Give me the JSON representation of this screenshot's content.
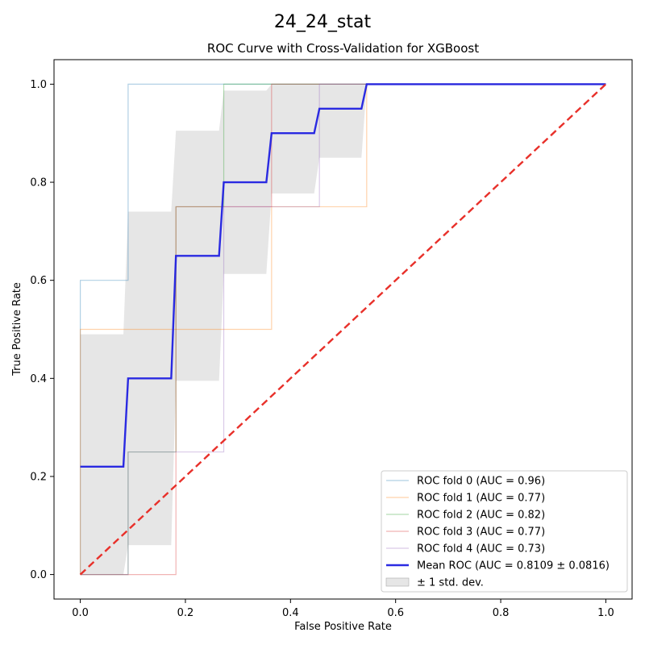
{
  "figure": {
    "suptitle": "24_24_stat"
  },
  "chart_data": {
    "type": "line",
    "title": "ROC Curve with Cross-Validation for XGBoost",
    "xlabel": "False Positive Rate",
    "ylabel": "True Positive Rate",
    "xlim": [
      -0.05,
      1.05
    ],
    "ylim": [
      -0.05,
      1.05
    ],
    "xticks": [
      "0.0",
      "0.2",
      "0.4",
      "0.6",
      "0.8",
      "1.0"
    ],
    "yticks": [
      "0.0",
      "0.2",
      "0.4",
      "0.6",
      "0.8",
      "1.0"
    ],
    "grid": false,
    "legend_position": "lower-right",
    "series": [
      {
        "name": "ROC fold 0 (AUC = 0.96)",
        "color": "#1f77b4",
        "x": [
          0.0,
          0.0,
          0.0,
          0.091,
          0.091,
          1.0
        ],
        "y": [
          0.0,
          0.4,
          0.6,
          0.6,
          1.0,
          1.0
        ]
      },
      {
        "name": "ROC fold 1 (AUC = 0.77)",
        "color": "#ff7f0e",
        "x": [
          0.0,
          0.0,
          0.364,
          0.364,
          0.545,
          0.545,
          1.0
        ],
        "y": [
          0.0,
          0.5,
          0.5,
          0.75,
          0.75,
          1.0,
          1.0
        ]
      },
      {
        "name": "ROC fold 2 (AUC = 0.82)",
        "color": "#2ca02c",
        "x": [
          0.0,
          0.091,
          0.091,
          0.182,
          0.182,
          0.273,
          0.273,
          1.0
        ],
        "y": [
          0.0,
          0.0,
          0.25,
          0.25,
          0.75,
          0.75,
          1.0,
          1.0
        ]
      },
      {
        "name": "ROC fold 3 (AUC = 0.77)",
        "color": "#d62728",
        "x": [
          0.0,
          0.182,
          0.182,
          0.364,
          0.364,
          1.0
        ],
        "y": [
          0.0,
          0.0,
          0.75,
          0.75,
          1.0,
          1.0
        ]
      },
      {
        "name": "ROC fold 4 (AUC = 0.73)",
        "color": "#9467bd",
        "x": [
          0.0,
          0.091,
          0.091,
          0.273,
          0.273,
          0.455,
          0.455,
          1.0
        ],
        "y": [
          0.0,
          0.0,
          0.25,
          0.25,
          0.75,
          0.75,
          1.0,
          1.0
        ]
      },
      {
        "name": "Mean ROC (AUC = 0.8109 ± 0.0816)",
        "color": "#2020e0",
        "x": [
          0.0,
          0.082,
          0.091,
          0.173,
          0.182,
          0.264,
          0.273,
          0.354,
          0.364,
          0.445,
          0.455,
          0.535,
          0.545,
          1.0
        ],
        "y": [
          0.22,
          0.22,
          0.4,
          0.4,
          0.65,
          0.65,
          0.8,
          0.8,
          0.9,
          0.9,
          0.95,
          0.95,
          1.0,
          1.0
        ]
      }
    ],
    "chance_line": {
      "color": "#e8302a",
      "x": [
        0.0,
        1.0
      ],
      "y": [
        0.0,
        1.0
      ]
    },
    "std_band": {
      "name": "± 1 std. dev.",
      "color": "#c8c8c8",
      "x": [
        0.0,
        0.082,
        0.091,
        0.173,
        0.182,
        0.264,
        0.273,
        0.354,
        0.364,
        0.445,
        0.455,
        0.535,
        0.545,
        1.0
      ],
      "upper": [
        0.49,
        0.49,
        0.74,
        0.74,
        0.905,
        0.905,
        0.987,
        0.987,
        1.0,
        1.0,
        1.0,
        1.0,
        1.0,
        1.0
      ],
      "lower": [
        0.0,
        0.0,
        0.06,
        0.06,
        0.395,
        0.395,
        0.613,
        0.613,
        0.777,
        0.777,
        0.85,
        0.85,
        1.0,
        1.0
      ]
    }
  }
}
